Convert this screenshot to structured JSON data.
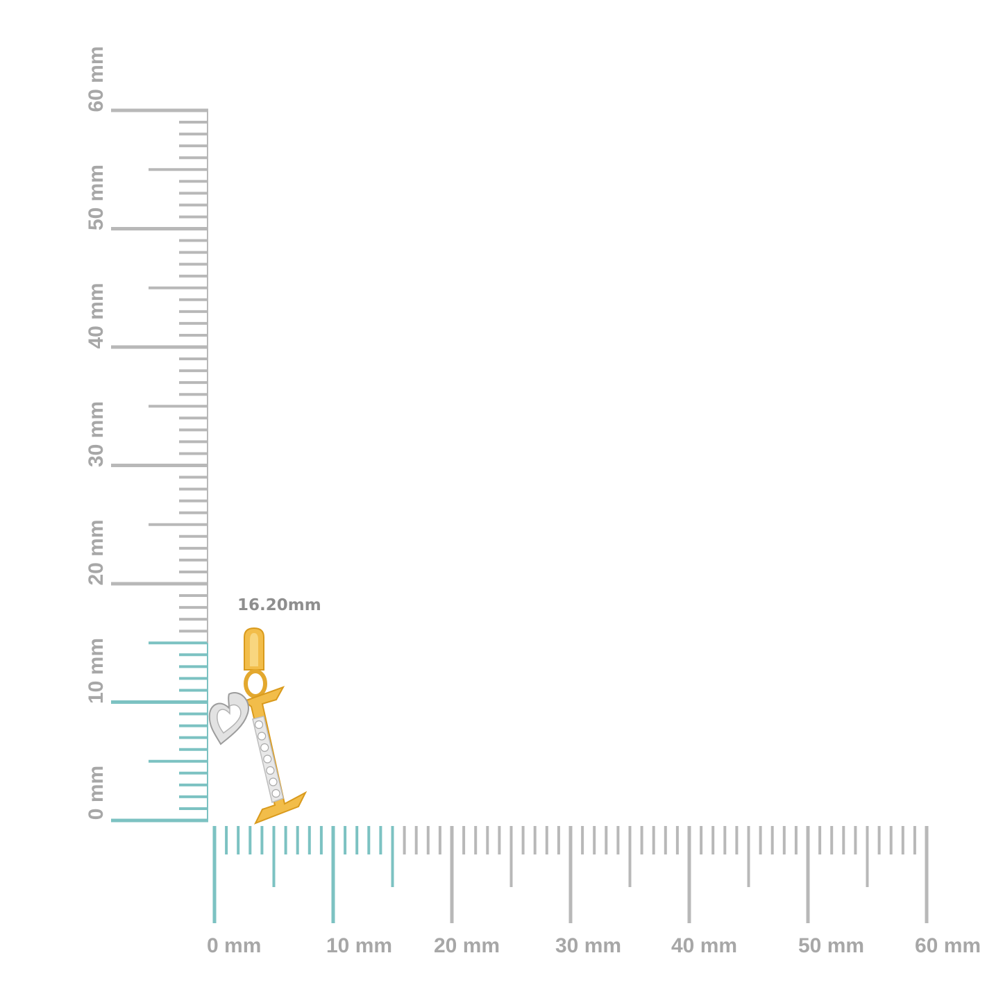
{
  "colors": {
    "tick_gray": "#b8b8b8",
    "tick_highlight": "#7cc2c2",
    "label_gray": "#a7a7a7",
    "gold": "#f2bd4a",
    "gold_dark": "#d99a1c",
    "silver": "#dcdcdc"
  },
  "ruler": {
    "unit": "mm",
    "max_mm": 60,
    "highlight_mm": 15,
    "x_labels": [
      "0 mm",
      "10 mm",
      "20 mm",
      "30 mm",
      "40 mm",
      "50 mm",
      "60 mm"
    ],
    "y_labels": [
      "0 mm",
      "10 mm",
      "20 mm",
      "30 mm",
      "40 mm",
      "50 mm",
      "60 mm"
    ]
  },
  "product": {
    "type": "initial pendant",
    "letter": "I",
    "accent": "heart-icon",
    "measurement_label": "16.20mm",
    "height_mm": 16.2
  }
}
